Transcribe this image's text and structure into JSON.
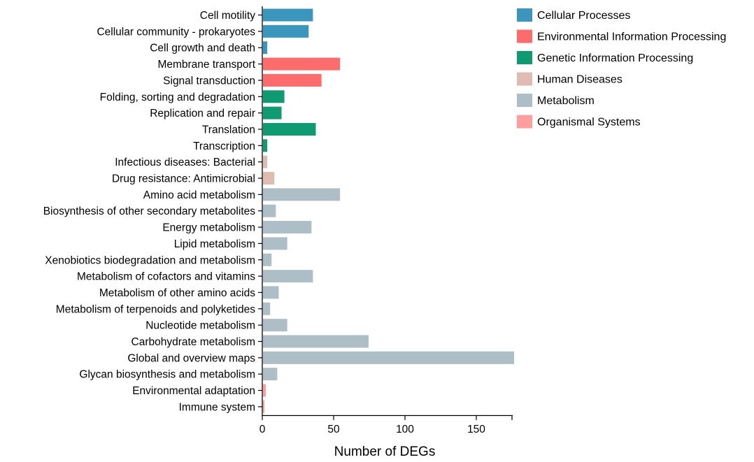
{
  "chart_data": {
    "type": "bar",
    "orientation": "horizontal",
    "xlabel": "Number of DEGs",
    "xlim": [
      0,
      180
    ],
    "xticks": [
      0,
      50,
      100,
      150
    ],
    "legend_position": "top-right",
    "groups": [
      {
        "name": "Cellular Processes",
        "color": "#3b96be"
      },
      {
        "name": "Environmental Information Processing",
        "color": "#fd6c6c"
      },
      {
        "name": "Genetic Information Processing",
        "color": "#0e9b72"
      },
      {
        "name": "Human Diseases",
        "color": "#dfbcb0"
      },
      {
        "name": "Metabolism",
        "color": "#aebec6"
      },
      {
        "name": "Organismal Systems",
        "color": "#fe9f9e"
      }
    ],
    "bars": [
      {
        "category": "Cell motility",
        "value": 35,
        "group": 0
      },
      {
        "category": "Cellular community - prokaryotes",
        "value": 32,
        "group": 0
      },
      {
        "category": "Cell growth and death",
        "value": 3,
        "group": 0
      },
      {
        "category": "Membrane transport",
        "value": 54,
        "group": 1
      },
      {
        "category": "Signal transduction",
        "value": 41,
        "group": 1
      },
      {
        "category": "Folding, sorting and degradation",
        "value": 15,
        "group": 2
      },
      {
        "category": "Replication and repair",
        "value": 13,
        "group": 2
      },
      {
        "category": "Translation",
        "value": 37,
        "group": 2
      },
      {
        "category": "Transcription",
        "value": 3,
        "group": 2
      },
      {
        "category": "Infectious diseases: Bacterial",
        "value": 3,
        "group": 3
      },
      {
        "category": "Drug resistance: Antimicrobial",
        "value": 8,
        "group": 3
      },
      {
        "category": "Amino acid metabolism",
        "value": 54,
        "group": 4
      },
      {
        "category": "Biosynthesis of other secondary metabolites",
        "value": 9,
        "group": 4
      },
      {
        "category": "Energy metabolism",
        "value": 34,
        "group": 4
      },
      {
        "category": "Lipid metabolism",
        "value": 17,
        "group": 4
      },
      {
        "category": "Xenobiotics biodegradation and metabolism",
        "value": 6,
        "group": 4
      },
      {
        "category": "Metabolism of cofactors and vitamins",
        "value": 35,
        "group": 4
      },
      {
        "category": "Metabolism of other amino acids",
        "value": 11,
        "group": 4
      },
      {
        "category": "Metabolism of terpenoids and polyketides",
        "value": 5,
        "group": 4
      },
      {
        "category": "Nucleotide metabolism",
        "value": 17,
        "group": 4
      },
      {
        "category": "Carbohydrate metabolism",
        "value": 74,
        "group": 4
      },
      {
        "category": "Global and overview maps",
        "value": 176,
        "group": 4
      },
      {
        "category": "Glycan biosynthesis and metabolism",
        "value": 10,
        "group": 4
      },
      {
        "category": "Environmental adaptation",
        "value": 2,
        "group": 5
      },
      {
        "category": "Immune system",
        "value": 1,
        "group": 5
      }
    ]
  }
}
